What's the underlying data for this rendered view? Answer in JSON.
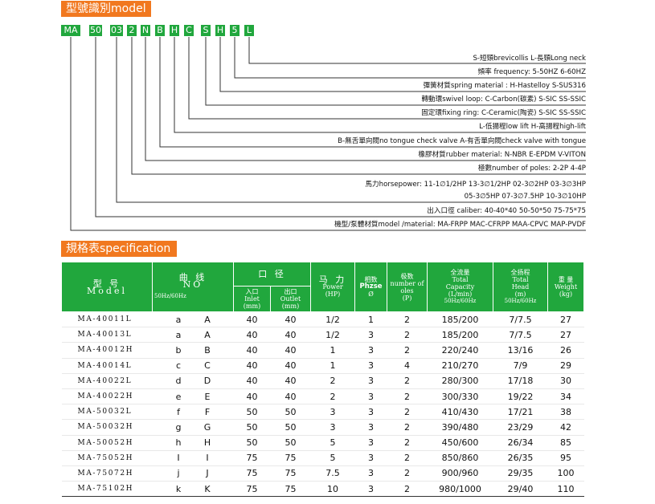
{
  "model_section_title": "型號識別model",
  "code_parts": [
    "MA",
    "50",
    "03",
    "2",
    "N",
    "B",
    "H",
    "C",
    "S",
    "H",
    "5",
    "L"
  ],
  "descriptions": [
    "S-短頸brevicollis L-長頸Long neck",
    "頻率 frequency: 5-50HZ 6-60HZ",
    "彈簧材質spring material : H-Hastelloy S-SUS316",
    "轉動環swivel loop: C-Carbon(碳素) S-SIC SS-SSIC",
    "固定環fixing ring: C-Ceramic(陶瓷) S-SIC SS-SSIC",
    "L-低揚程low lift  H-高揚程high-lift",
    "B-無舌單向閥no tongue check valve  A-有舌單向閥check valve with tongue",
    "橡膠材質rubber material: N-NBR E-EPDM V-VITON",
    "極數number of poles: 2-2P 4-4P",
    "馬力horsepower: 11-1∅1/2HP 13-3∅1/2HP 02-3∅2HP 03-3∅3HP",
    "05-3∅5HP 07-3∅7.5HP 10-3∅10HP",
    "出入口徑 caliber: 40-40*40 50-50*50 75-75*75",
    "機型/泵體材質model /material: MA-FRPP MAC-CFRPP MAA-CPVC MAP-PVDF"
  ],
  "spec_section_title": "規格表specification",
  "headers": {
    "model": "型 号",
    "model_en": "Model",
    "curve": "曲 线",
    "curve_en": "NO",
    "curve_unit": "50Hz/60Hz",
    "caliber": "口 径",
    "inlet": "入口",
    "inlet_en": "Inlet",
    "inlet_unit": "(mm)",
    "outlet": "出口",
    "outlet_en": "Outlet",
    "outlet_unit": "(mm)",
    "power": "马 力",
    "power_en": "Power",
    "power_unit": "(HP)",
    "phase": "相数",
    "phase_en": "Phzse",
    "phase_unit": "Ø",
    "poles": "极数",
    "poles_en": "number of oles",
    "poles_unit": "(P)",
    "capacity": "全流量",
    "capacity_en1": "Total",
    "capacity_en2": "Capacity",
    "capacity_unit": "(L/min)",
    "capacity_hz": "50Hz/60Hz",
    "head": "全扬程",
    "head_en1": "Total",
    "head_en2": "Head",
    "head_unit": "(m)",
    "head_hz": "50Hz/60Hz",
    "weight": "重 量",
    "weight_en": "Weight",
    "weight_unit": "(kg)"
  },
  "rows": [
    {
      "model": "MA-40011L",
      "c1": "a",
      "c2": "A",
      "inlet": "40",
      "outlet": "40",
      "power": "1/2",
      "phase": "1",
      "poles": "2",
      "capacity": "185/200",
      "head": "7/7.5",
      "weight": "27"
    },
    {
      "model": "MA-40013L",
      "c1": "a",
      "c2": "A",
      "inlet": "40",
      "outlet": "40",
      "power": "1/2",
      "phase": "3",
      "poles": "2",
      "capacity": "185/200",
      "head": "7/7.5",
      "weight": "27"
    },
    {
      "model": "MA-40012H",
      "c1": "b",
      "c2": "B",
      "inlet": "40",
      "outlet": "40",
      "power": "1",
      "phase": "3",
      "poles": "2",
      "capacity": "220/240",
      "head": "13/16",
      "weight": "26"
    },
    {
      "model": "MA-40014L",
      "c1": "c",
      "c2": "C",
      "inlet": "40",
      "outlet": "40",
      "power": "1",
      "phase": "3",
      "poles": "4",
      "capacity": "210/270",
      "head": "7/9",
      "weight": "29"
    },
    {
      "model": "MA-40022L",
      "c1": "d",
      "c2": "D",
      "inlet": "40",
      "outlet": "40",
      "power": "2",
      "phase": "3",
      "poles": "2",
      "capacity": "280/300",
      "head": "17/18",
      "weight": "30"
    },
    {
      "model": "MA-40022H",
      "c1": "e",
      "c2": "E",
      "inlet": "40",
      "outlet": "40",
      "power": "2",
      "phase": "3",
      "poles": "2",
      "capacity": "300/330",
      "head": "19/22",
      "weight": "34"
    },
    {
      "model": "MA-50032L",
      "c1": "f",
      "c2": "F",
      "inlet": "50",
      "outlet": "50",
      "power": "3",
      "phase": "3",
      "poles": "2",
      "capacity": "410/430",
      "head": "17/21",
      "weight": "38"
    },
    {
      "model": "MA-50032H",
      "c1": "g",
      "c2": "G",
      "inlet": "50",
      "outlet": "50",
      "power": "3",
      "phase": "3",
      "poles": "2",
      "capacity": "390/480",
      "head": "23/29",
      "weight": "42"
    },
    {
      "model": "MA-50052H",
      "c1": "h",
      "c2": "H",
      "inlet": "50",
      "outlet": "50",
      "power": "5",
      "phase": "3",
      "poles": "2",
      "capacity": "450/600",
      "head": "26/34",
      "weight": "85"
    },
    {
      "model": "MA-75052H",
      "c1": "I",
      "c2": "I",
      "inlet": "75",
      "outlet": "75",
      "power": "5",
      "phase": "3",
      "poles": "2",
      "capacity": "850/860",
      "head": "26/35",
      "weight": "95"
    },
    {
      "model": "MA-75072H",
      "c1": "j",
      "c2": "J",
      "inlet": "75",
      "outlet": "75",
      "power": "7.5",
      "phase": "3",
      "poles": "2",
      "capacity": "900/960",
      "head": "29/35",
      "weight": "100"
    },
    {
      "model": "MA-75102H",
      "c1": "k",
      "c2": "K",
      "inlet": "75",
      "outlet": "75",
      "power": "10",
      "phase": "3",
      "poles": "2",
      "capacity": "980/1000",
      "head": "29/40",
      "weight": "110"
    }
  ]
}
